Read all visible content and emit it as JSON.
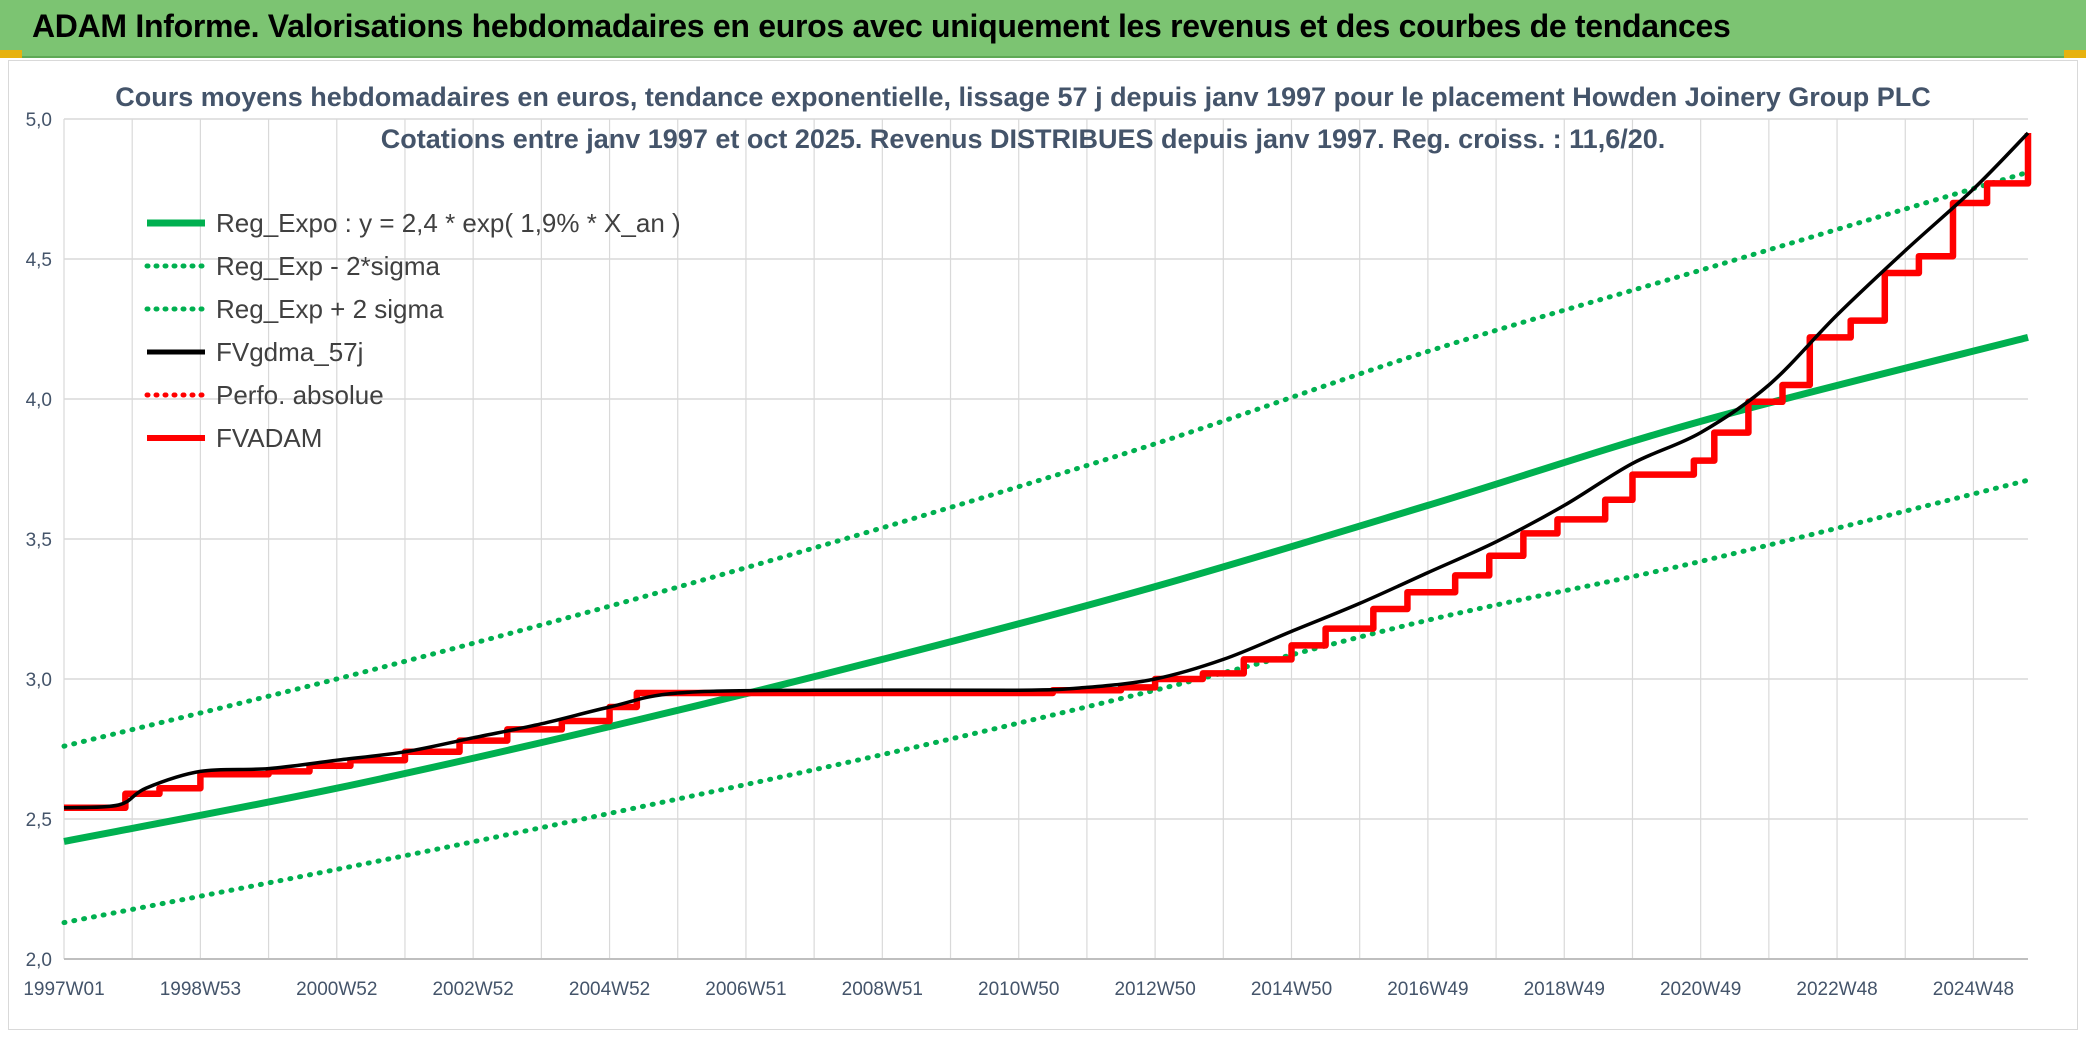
{
  "header": {
    "title": "ADAM Informe. Valorisations hebdomadaires en euros avec uniquement les revenus et des courbes de tendances"
  },
  "colors": {
    "header_bg": "#7cc472",
    "trend": "#00b050",
    "fv_gdma": "#000000",
    "fvadam": "#ff0000",
    "grid": "#d9d9d9",
    "text": "#44546a"
  },
  "chart_data": {
    "type": "line",
    "title": "Cours moyens hebdomadaires en euros, tendance exponentielle, lissage 57 j depuis janv 1997 pour le placement Howden Joinery Group PLC",
    "subtitle": "Cotations entre janv 1997 et oct 2025. Revenus DISTRIBUES depuis janv 1997. Reg. croiss. : 11,6/20.",
    "xlabel": "",
    "ylabel": "",
    "ylim": [
      2.0,
      5.0
    ],
    "y_ticks": [
      "2,0",
      "2,5",
      "3,0",
      "3,5",
      "4,0",
      "4,5",
      "5,0"
    ],
    "x_ticks": [
      "1997W01",
      "1998W53",
      "2000W52",
      "2002W52",
      "2004W52",
      "2006W51",
      "2008W51",
      "2010W50",
      "2012W50",
      "2014W50",
      "2016W49",
      "2018W49",
      "2020W49",
      "2022W48",
      "2024W48"
    ],
    "x_range": [
      1997.0,
      2025.8
    ],
    "grid": true,
    "legend_position": "top-left",
    "series": [
      {
        "name": "Reg_Expo : y = 2,4 * exp( 1,9% *  X_an )",
        "style": "solid-thick",
        "color": "#00b050",
        "x": [
          1997.0,
          2001.0,
          2005.0,
          2009.0,
          2013.0,
          2017.0,
          2021.0,
          2025.8
        ],
        "y": [
          2.42,
          2.61,
          2.83,
          3.07,
          3.33,
          3.62,
          3.92,
          4.22
        ]
      },
      {
        "name": "Reg_Exp - 2*sigma",
        "style": "dotted",
        "color": "#00b050",
        "x": [
          1997.0,
          2001.0,
          2005.0,
          2009.0,
          2013.0,
          2017.0,
          2021.0,
          2025.8
        ],
        "y": [
          2.13,
          2.32,
          2.52,
          2.73,
          2.96,
          3.21,
          3.42,
          3.71
        ]
      },
      {
        "name": "Reg_Exp + 2 sigma",
        "style": "dotted",
        "color": "#00b050",
        "x": [
          1997.0,
          2001.0,
          2005.0,
          2009.0,
          2013.0,
          2017.0,
          2021.0,
          2025.8
        ],
        "y": [
          2.76,
          3.0,
          3.26,
          3.54,
          3.84,
          4.17,
          4.46,
          4.81
        ]
      },
      {
        "name": "FVgdma_57j",
        "style": "solid",
        "color": "#000000",
        "x": [
          1997.0,
          1997.8,
          1998.2,
          1999.0,
          2000.0,
          2001.0,
          2002.0,
          2003.0,
          2004.0,
          2005.0,
          2006.0,
          2008.0,
          2011.0,
          2012.0,
          2013.0,
          2014.0,
          2015.0,
          2016.0,
          2017.0,
          2018.0,
          2019.0,
          2020.0,
          2021.0,
          2022.0,
          2023.0,
          2024.0,
          2025.0,
          2025.8
        ],
        "y": [
          2.54,
          2.55,
          2.61,
          2.67,
          2.68,
          2.71,
          2.74,
          2.79,
          2.84,
          2.9,
          2.95,
          2.96,
          2.96,
          2.97,
          3.0,
          3.07,
          3.17,
          3.27,
          3.38,
          3.49,
          3.62,
          3.77,
          3.88,
          4.05,
          4.3,
          4.53,
          4.75,
          4.95
        ]
      },
      {
        "name": "Perfo. absolue",
        "style": "dotted",
        "color": "#ff0000",
        "x": [],
        "y": []
      },
      {
        "name": "FVADAM",
        "style": "step-thick",
        "color": "#ff0000",
        "x": [
          1997.0,
          1997.9,
          1998.4,
          1999.0,
          2000.0,
          2000.6,
          2001.2,
          2002.0,
          2002.8,
          2003.5,
          2004.3,
          2005.0,
          2005.4,
          2011.5,
          2012.5,
          2013.0,
          2013.7,
          2014.3,
          2015.0,
          2015.5,
          2016.2,
          2016.7,
          2017.4,
          2017.9,
          2018.4,
          2018.9,
          2019.6,
          2020.0,
          2020.9,
          2021.2,
          2021.7,
          2022.2,
          2022.6,
          2023.2,
          2023.7,
          2024.2,
          2024.7,
          2025.2,
          2025.8
        ],
        "y": [
          2.54,
          2.59,
          2.61,
          2.66,
          2.67,
          2.69,
          2.71,
          2.74,
          2.78,
          2.82,
          2.85,
          2.9,
          2.95,
          2.96,
          2.97,
          3.0,
          3.02,
          3.07,
          3.12,
          3.18,
          3.25,
          3.31,
          3.37,
          3.44,
          3.52,
          3.57,
          3.64,
          3.73,
          3.78,
          3.88,
          3.99,
          4.05,
          4.22,
          4.28,
          4.45,
          4.51,
          4.7,
          4.77,
          4.95
        ]
      }
    ]
  }
}
